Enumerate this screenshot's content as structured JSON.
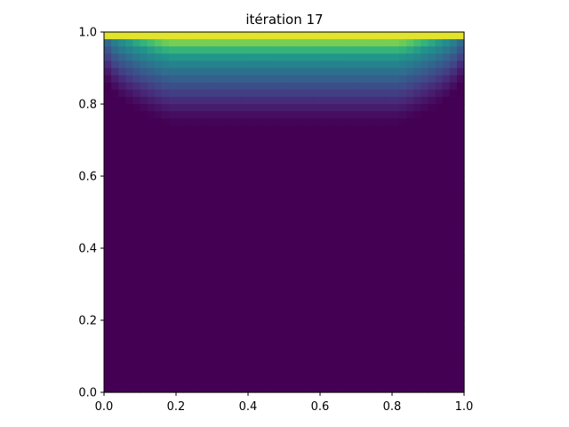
{
  "chart_data": {
    "type": "heatmap",
    "title": "itération 17",
    "xlabel": "",
    "ylabel": "",
    "xlim": [
      0.0,
      1.0
    ],
    "ylim": [
      0.0,
      1.0
    ],
    "xticks": [
      "0.0",
      "0.2",
      "0.4",
      "0.6",
      "0.8",
      "1.0"
    ],
    "yticks": [
      "0.0",
      "0.2",
      "0.4",
      "0.6",
      "0.8",
      "1.0"
    ],
    "grid": false,
    "colormap": "viridis",
    "grid_cells": 50,
    "field": {
      "description_units": "normalized value 0-1",
      "boundary_top_value": 1.0,
      "zero_below_y": 0.74,
      "max_penetration_from_top": 0.26,
      "side_walls_x": [
        0.0,
        1.0
      ]
    },
    "colors": {
      "low": "#440154",
      "high": "#fde725"
    }
  }
}
